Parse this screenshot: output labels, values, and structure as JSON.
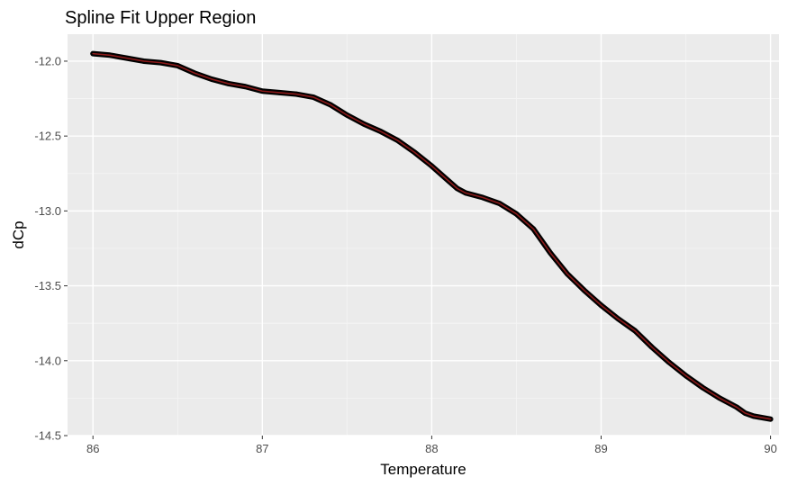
{
  "chart_data": {
    "type": "line",
    "title": "Spline Fit Upper Region",
    "xlabel": "Temperature",
    "ylabel": "dCp",
    "xlim": [
      85.85,
      90.05
    ],
    "ylim": [
      -14.5,
      -11.82
    ],
    "x_ticks": [
      86,
      87,
      88,
      89,
      90
    ],
    "x_tick_labels": [
      "86",
      "87",
      "88",
      "89",
      "90"
    ],
    "y_ticks": [
      -12.0,
      -12.5,
      -13.0,
      -13.5,
      -14.0,
      -14.5
    ],
    "y_tick_labels": [
      "-12.0",
      "-12.5",
      "-13.0",
      "-13.5",
      "-14.0",
      "-14.5"
    ],
    "grid": true,
    "legend": "none",
    "colors": {
      "panel": "#ebebeb",
      "grid_major": "#ffffff",
      "grid_minor": "#f5f5f5",
      "points": "#000000",
      "fit_line": "#8b1a1a",
      "tick_text": "#4d4d4d",
      "tick_mark": "#333333"
    },
    "series": [
      {
        "x": [
          86.0,
          86.1,
          86.2,
          86.3,
          86.4,
          86.5,
          86.6,
          86.7,
          86.8,
          86.9,
          87.0,
          87.1,
          87.2,
          87.3,
          87.4,
          87.5,
          87.6,
          87.7,
          87.8,
          87.9,
          88.0,
          88.1,
          88.15,
          88.2,
          88.3,
          88.4,
          88.5,
          88.6,
          88.7,
          88.8,
          88.9,
          89.0,
          89.1,
          89.2,
          89.3,
          89.4,
          89.5,
          89.6,
          89.7,
          89.8,
          89.85,
          89.9,
          90.0
        ],
        "y": [
          -11.95,
          -11.96,
          -11.98,
          -12.0,
          -12.01,
          -12.03,
          -12.08,
          -12.12,
          -12.15,
          -12.17,
          -12.2,
          -12.21,
          -12.22,
          -12.24,
          -12.29,
          -12.36,
          -12.42,
          -12.47,
          -12.53,
          -12.61,
          -12.7,
          -12.8,
          -12.85,
          -12.88,
          -12.91,
          -12.95,
          -13.02,
          -13.12,
          -13.28,
          -13.42,
          -13.53,
          -13.63,
          -13.72,
          -13.8,
          -13.91,
          -14.01,
          -14.1,
          -14.18,
          -14.25,
          -14.31,
          -14.35,
          -14.37,
          -14.39
        ]
      }
    ]
  }
}
